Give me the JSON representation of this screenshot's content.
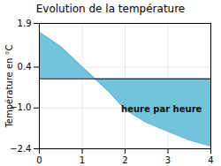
{
  "chart_data": {
    "type": "area",
    "title": "Evolution de la température",
    "ylabel": "Température en °C",
    "x": [
      0,
      0.5,
      1.0,
      1.3,
      1.6,
      2.0,
      2.5,
      3.0,
      3.5,
      4.0
    ],
    "values": [
      1.6,
      1.1,
      0.4,
      0.0,
      -0.4,
      -1.05,
      -1.5,
      -1.8,
      -2.1,
      -2.3
    ],
    "color": "#5ab8d4",
    "xlim": [
      0,
      4
    ],
    "ylim": [
      -2.4,
      1.9
    ],
    "xticks": [
      0,
      1,
      2,
      3,
      4
    ],
    "yticks": [
      -2.4,
      {
        "value": -1.0,
        "label": "−1.0"
      },
      0.4,
      1.9
    ],
    "grid": true,
    "annotations": [
      {
        "text": "heure par heure",
        "x": 2.85,
        "y": -1.05
      }
    ]
  }
}
